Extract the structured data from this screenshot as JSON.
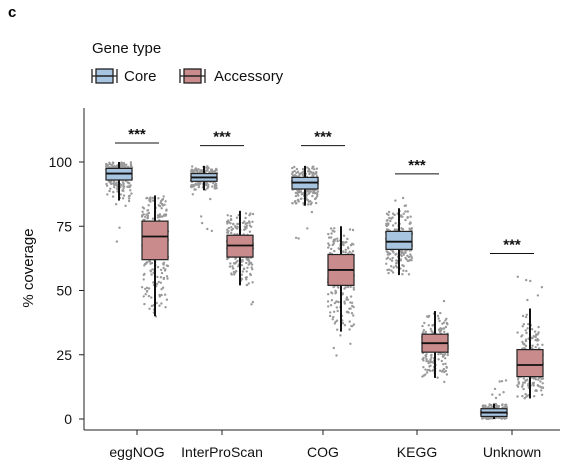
{
  "panel_letter": "c",
  "colors": {
    "core": "#a7c4e0",
    "accessory": "#c98b8b",
    "points": "#9a9a9a",
    "axis": "#222222"
  },
  "chart_data": {
    "type": "box",
    "title": "",
    "ylabel": "% coverage",
    "xlabel": "",
    "ylim": [
      -3,
      120
    ],
    "yticks": [
      0,
      25,
      50,
      75,
      100
    ],
    "grid": false,
    "legend": {
      "title": "Gene type",
      "placement": "top-left",
      "items": [
        {
          "name": "Core",
          "color": "#a7c4e0"
        },
        {
          "name": "Accessory",
          "color": "#c98b8b"
        }
      ]
    },
    "categories": [
      "eggNOG",
      "InterProScan",
      "COG",
      "KEGG",
      "Unknown"
    ],
    "series": [
      {
        "name": "Core",
        "boxes": [
          {
            "q1": 93,
            "median": 95.5,
            "q3": 97.5,
            "whisker_low": 85,
            "whisker_high": 100,
            "points_low": 68,
            "points_high": 100
          },
          {
            "q1": 92.5,
            "median": 94,
            "q3": 95.5,
            "whisker_low": 89,
            "whisker_high": 98.5,
            "points_low": 68,
            "points_high": 99
          },
          {
            "q1": 89.5,
            "median": 92,
            "q3": 94,
            "whisker_low": 83,
            "whisker_high": 98.5,
            "points_low": 67,
            "points_high": 99
          },
          {
            "q1": 66,
            "median": 69,
            "q3": 73,
            "whisker_low": 56,
            "whisker_high": 82,
            "points_low": 55,
            "points_high": 88
          },
          {
            "q1": 1,
            "median": 2.5,
            "q3": 4,
            "whisker_low": 0,
            "whisker_high": 6,
            "points_low": 0,
            "points_high": 18
          }
        ]
      },
      {
        "name": "Accessory",
        "boxes": [
          {
            "q1": 62,
            "median": 71,
            "q3": 77,
            "whisker_low": 40,
            "whisker_high": 87,
            "points_low": 25,
            "points_high": 87
          },
          {
            "q1": 63,
            "median": 67.5,
            "q3": 71.5,
            "whisker_low": 52,
            "whisker_high": 81,
            "points_low": 40,
            "points_high": 80
          },
          {
            "q1": 52,
            "median": 58,
            "q3": 64,
            "whisker_low": 34,
            "whisker_high": 75,
            "points_low": 22,
            "points_high": 75
          },
          {
            "q1": 26,
            "median": 29.5,
            "q3": 33,
            "whisker_low": 16,
            "whisker_high": 42,
            "points_low": 11,
            "points_high": 47
          },
          {
            "q1": 16.5,
            "median": 21,
            "q3": 27,
            "whisker_low": 8,
            "whisker_high": 43,
            "points_low": 8,
            "points_high": 57
          }
        ]
      }
    ],
    "annotations": [
      {
        "category": "eggNOG",
        "text": "***"
      },
      {
        "category": "InterProScan",
        "text": "***"
      },
      {
        "category": "COG",
        "text": "***"
      },
      {
        "category": "KEGG",
        "text": "***"
      },
      {
        "category": "Unknown",
        "text": "***"
      }
    ]
  }
}
